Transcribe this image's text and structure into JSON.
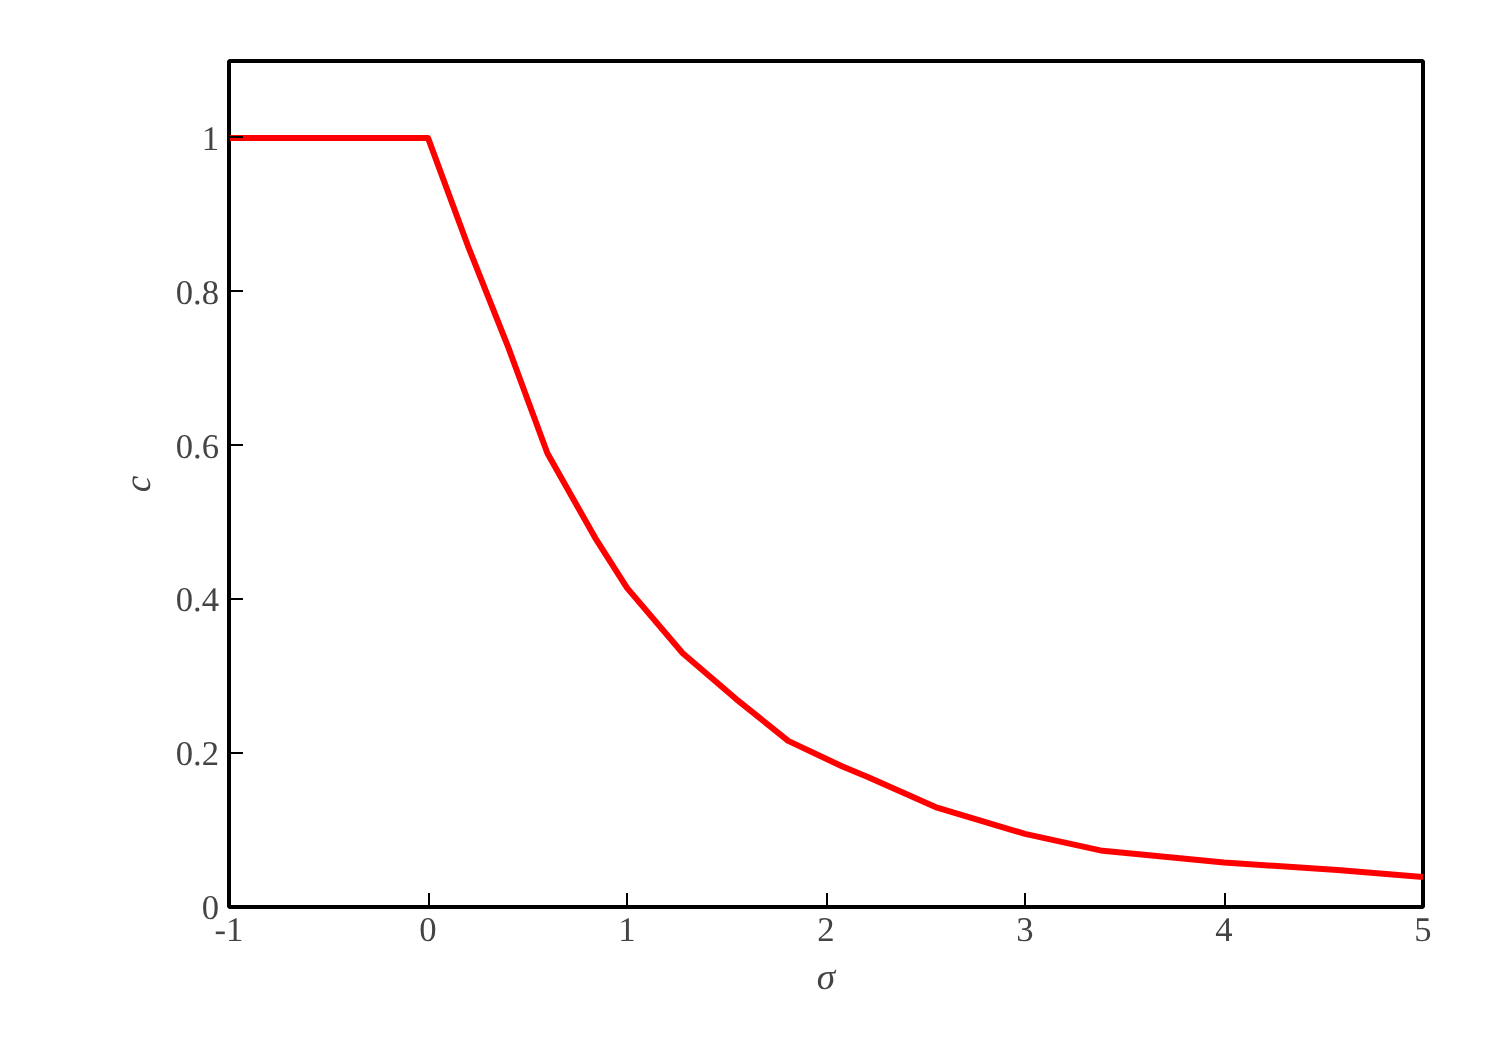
{
  "chart_data": {
    "type": "line",
    "xlabel": "σ",
    "ylabel": "c",
    "x": [
      -1,
      0,
      0.2,
      0.4,
      0.6,
      0.84,
      1.0,
      1.28,
      1.55,
      1.81,
      2.08,
      2.21,
      2.55,
      3,
      3.39,
      4,
      4.57,
      5
    ],
    "series": [
      {
        "color": "#ff0000",
        "values": [
          1,
          1,
          0.86,
          0.73,
          0.59,
          0.48,
          0.415,
          0.33,
          0.27,
          0.216,
          0.183,
          0.169,
          0.13,
          0.095,
          0.073,
          0.058,
          0.048,
          0.039
        ]
      }
    ],
    "xlim": [
      -1,
      5
    ],
    "ylim": [
      0,
      1.1
    ],
    "xticks": [
      -1,
      0,
      1,
      2,
      3,
      4,
      5
    ],
    "yticks": [
      0,
      0.2,
      0.4,
      0.6,
      0.8,
      1
    ],
    "grid": false,
    "line_style": "solid"
  }
}
